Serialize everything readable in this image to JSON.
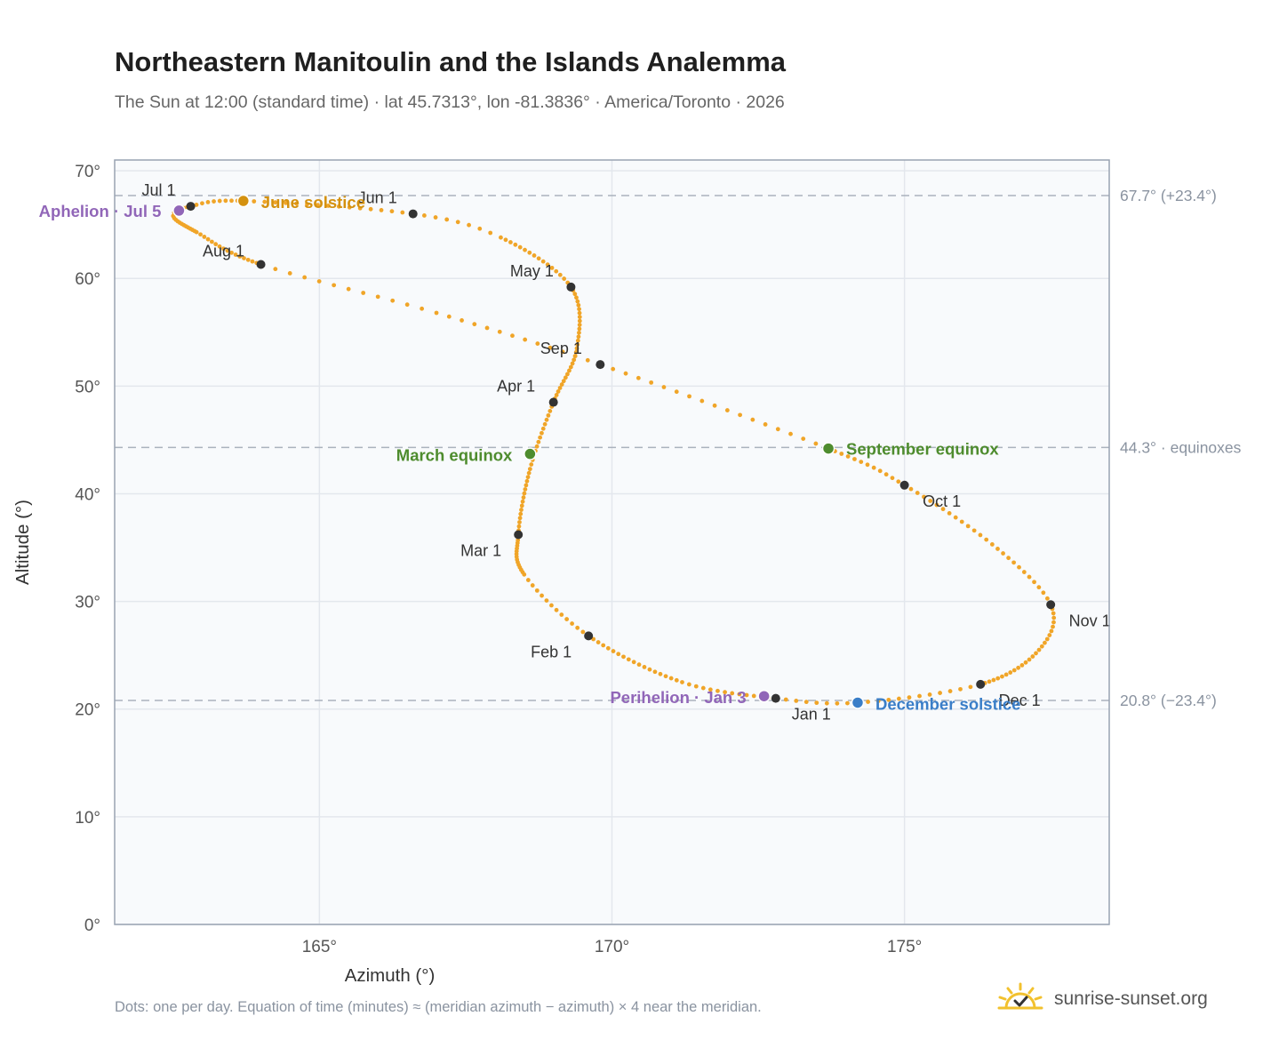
{
  "header": {
    "title": "Northeastern Manitoulin and the Islands Analemma",
    "subtitle": "The Sun at 12:00 (standard time) · lat 45.7313°, lon -81.3836° · America/Toronto · 2026"
  },
  "footer": {
    "note": "Dots: one per day. Equation of time (minutes) ≈ (meridian azimuth − azimuth) × 4 near the meridian.",
    "brand": "sunrise-sunset.org",
    "brand_icon": "sun-check-icon"
  },
  "colors": {
    "curve": "#f0a528",
    "month_marker": "#333333",
    "solstice_june": "#d4910f",
    "solstice_december": "#3a7ec8",
    "equinox": "#4e8c2e",
    "apsis": "#9166b8",
    "reference_line": "#aab2bd",
    "plot_background": "#f8fafc",
    "grid": "#e3e7ed",
    "frame": "#99a3b2"
  },
  "chart_data": {
    "type": "scatter",
    "xlabel": "Azimuth (°)",
    "ylabel": "Altitude (°)",
    "xlim": [
      161.5,
      178.5
    ],
    "ylim": [
      0,
      71
    ],
    "x_ticks": [
      165,
      170,
      175
    ],
    "x_tick_labels": [
      "165°",
      "170°",
      "175°"
    ],
    "y_ticks": [
      0,
      10,
      20,
      30,
      40,
      50,
      60,
      70
    ],
    "y_tick_labels": [
      "0°",
      "10°",
      "20°",
      "30°",
      "40°",
      "50°",
      "60°",
      "70°"
    ],
    "grid": true,
    "legend": "none",
    "reference_lines": [
      {
        "y": 67.7,
        "label": "67.7° (+23.4°)"
      },
      {
        "y": 44.3,
        "label": "44.3° · equinoxes"
      },
      {
        "y": 20.8,
        "label": "20.8° (−23.4°)"
      }
    ],
    "analemma_keypoints": [
      {
        "x": 172.8,
        "y": 21.0
      },
      {
        "x": 171.2,
        "y": 22.5
      },
      {
        "x": 169.6,
        "y": 26.8
      },
      {
        "x": 168.5,
        "y": 32.5
      },
      {
        "x": 168.4,
        "y": 36.2
      },
      {
        "x": 168.6,
        "y": 42.3
      },
      {
        "x": 169.0,
        "y": 48.5
      },
      {
        "x": 169.4,
        "y": 53.5
      },
      {
        "x": 169.3,
        "y": 59.2
      },
      {
        "x": 168.1,
        "y": 63.8
      },
      {
        "x": 166.6,
        "y": 66.0
      },
      {
        "x": 163.7,
        "y": 67.2
      },
      {
        "x": 162.8,
        "y": 66.7
      },
      {
        "x": 162.5,
        "y": 65.8
      },
      {
        "x": 162.9,
        "y": 64.3
      },
      {
        "x": 164.0,
        "y": 61.3
      },
      {
        "x": 167.0,
        "y": 56.8
      },
      {
        "x": 169.8,
        "y": 52.0
      },
      {
        "x": 173.7,
        "y": 44.2
      },
      {
        "x": 175.0,
        "y": 40.8
      },
      {
        "x": 176.5,
        "y": 35.3
      },
      {
        "x": 177.5,
        "y": 29.7
      },
      {
        "x": 177.3,
        "y": 25.5
      },
      {
        "x": 176.3,
        "y": 22.3
      },
      {
        "x": 174.2,
        "y": 20.6
      },
      {
        "x": 172.8,
        "y": 21.0
      }
    ],
    "month_markers": [
      {
        "label": "Jan 1",
        "x": 172.8,
        "y": 21.0
      },
      {
        "label": "Feb 1",
        "x": 169.6,
        "y": 26.8
      },
      {
        "label": "Mar 1",
        "x": 168.4,
        "y": 36.2
      },
      {
        "label": "Apr 1",
        "x": 169.0,
        "y": 48.5
      },
      {
        "label": "May 1",
        "x": 169.3,
        "y": 59.2
      },
      {
        "label": "Jun 1",
        "x": 166.6,
        "y": 66.0
      },
      {
        "label": "Jul 1",
        "x": 162.8,
        "y": 66.7
      },
      {
        "label": "Aug 1",
        "x": 164.0,
        "y": 61.3
      },
      {
        "label": "Sep 1",
        "x": 169.8,
        "y": 52.0
      },
      {
        "label": "Oct 1",
        "x": 175.0,
        "y": 40.8
      },
      {
        "label": "Nov 1",
        "x": 177.5,
        "y": 29.7
      },
      {
        "label": "Dec 1",
        "x": 176.3,
        "y": 22.3
      }
    ],
    "events": [
      {
        "label": "June solstice",
        "x": 163.7,
        "y": 67.2,
        "kind": "solstice_june"
      },
      {
        "label": "December solstice",
        "x": 174.2,
        "y": 20.6,
        "kind": "solstice_december"
      },
      {
        "label": "March equinox",
        "x": 168.6,
        "y": 43.7,
        "kind": "equinox"
      },
      {
        "label": "September equinox",
        "x": 173.7,
        "y": 44.2,
        "kind": "equinox"
      },
      {
        "label": "Aphelion · Jul 5",
        "x": 162.6,
        "y": 66.3,
        "kind": "apsis"
      },
      {
        "label": "Perihelion · Jan 3",
        "x": 172.6,
        "y": 21.2,
        "kind": "apsis"
      }
    ]
  }
}
